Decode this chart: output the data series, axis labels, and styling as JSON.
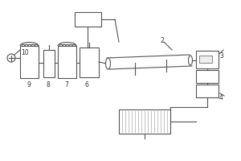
{
  "background": "#ffffff",
  "line_color": "#555555",
  "label_color": "#333333",
  "lw": 0.8
}
